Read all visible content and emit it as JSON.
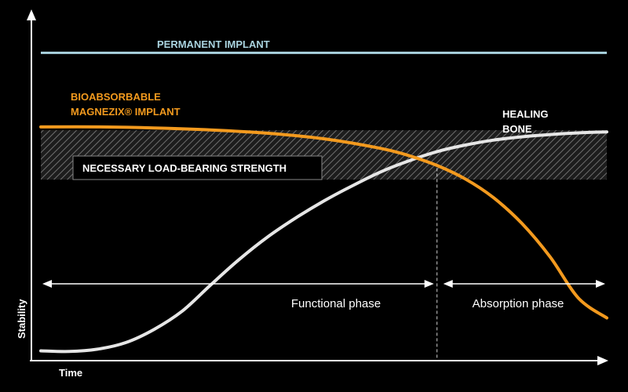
{
  "chart_data": {
    "type": "line",
    "title": "",
    "xlabel": "Time",
    "ylabel": "Stability",
    "grid": false,
    "xlim": [
      0,
      100
    ],
    "ylim": [
      0,
      100
    ],
    "colors": {
      "background": "#000000",
      "axis": "#ffffff",
      "permanent": "#a9d3df",
      "magnezix": "#f39a1e",
      "bone": "#e6e6e6",
      "band_hatch": "#6f6f6f",
      "band_fill": "#1d1d1d",
      "text": "#ffffff"
    },
    "series": [
      {
        "name": "PERMANENT IMPLANT",
        "x": [
          0,
          100
        ],
        "y": [
          93,
          93
        ]
      },
      {
        "name": "BIOABSORBABLE MAGNEZIX® IMPLANT",
        "name_lines": [
          "BIOABSORBABLE",
          "MAGNEZIX® IMPLANT"
        ],
        "x": [
          0,
          10,
          20,
          30,
          40,
          50,
          60,
          65,
          70,
          75,
          80,
          85,
          90,
          95,
          100
        ],
        "y": [
          70.5,
          70.5,
          70.2,
          69.6,
          68.6,
          66.9,
          64.0,
          61.8,
          58.8,
          54.7,
          49.0,
          41.2,
          31.0,
          18.5,
          12.5
        ]
      },
      {
        "name": "HEALING BONE",
        "name_lines": [
          "HEALING",
          "BONE"
        ],
        "x": [
          0,
          5,
          10,
          15,
          20,
          25,
          30,
          35,
          40,
          45,
          50,
          55,
          60,
          65,
          70,
          75,
          80,
          85,
          90,
          95,
          100
        ],
        "y": [
          2.5,
          2.3,
          3.0,
          5.0,
          9.0,
          14.6,
          22.5,
          30.2,
          37.0,
          42.8,
          48.0,
          52.6,
          56.8,
          60.2,
          63.0,
          65.0,
          66.5,
          67.5,
          68.2,
          68.7,
          69.0
        ]
      }
    ],
    "band": {
      "label": "NECESSARY LOAD-BEARING STRENGTH",
      "y_range": [
        54.5,
        69.5
      ]
    },
    "phases": [
      {
        "label": "Functional phase",
        "x_range": [
          0,
          70
        ]
      },
      {
        "label": "Absorption phase",
        "x_range": [
          70,
          100
        ]
      }
    ],
    "marker_x": 70,
    "legend": "inline labels"
  }
}
